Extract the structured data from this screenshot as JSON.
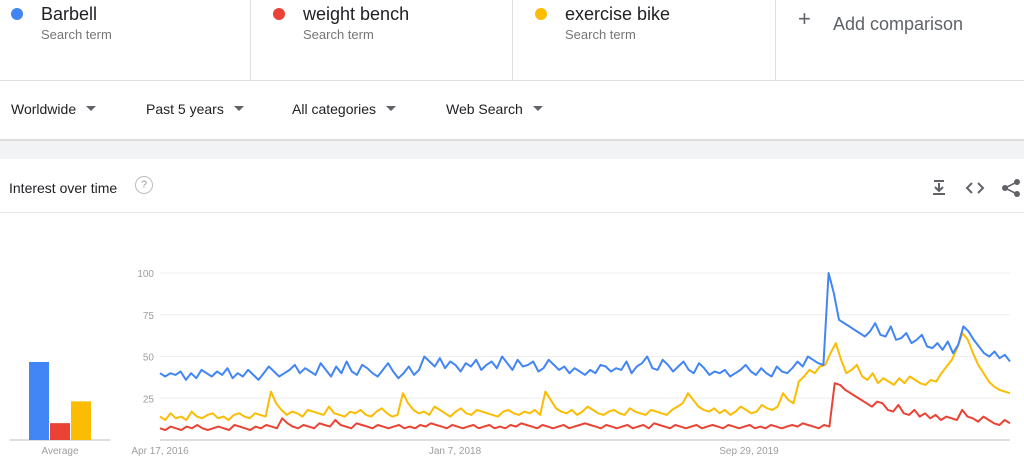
{
  "terms": [
    {
      "name": "Barbell",
      "sub": "Search term",
      "color": "#4285f4"
    },
    {
      "name": "weight bench",
      "sub": "Search term",
      "color": "#ea4335"
    },
    {
      "name": "exercise bike",
      "sub": "Search term",
      "color": "#fbbc04"
    }
  ],
  "add_comparison": {
    "icon": "+",
    "label": "Add comparison"
  },
  "filters": {
    "region": "Worldwide",
    "time": "Past 5 years",
    "category": "All categories",
    "property": "Web Search"
  },
  "card": {
    "title": "Interest over time",
    "help_icon": "?",
    "actions": [
      "download-icon",
      "embed-icon",
      "share-icon"
    ]
  },
  "chart_data": {
    "type": "line",
    "x_labels": [
      "Apr 17, 2016",
      "Jan 7, 2018",
      "Sep 29, 2019"
    ],
    "y_ticks": [
      25,
      50,
      75,
      100
    ],
    "ylim": [
      0,
      100
    ],
    "series": [
      {
        "name": "Barbell",
        "color": "#4285f4",
        "values": [
          40,
          38,
          40,
          39,
          41,
          36,
          40,
          37,
          42,
          40,
          38,
          41,
          39,
          43,
          37,
          40,
          38,
          42,
          39,
          36,
          40,
          44,
          41,
          38,
          40,
          42,
          45,
          40,
          43,
          41,
          39,
          46,
          42,
          38,
          44,
          40,
          47,
          41,
          39,
          45,
          43,
          40,
          38,
          42,
          46,
          41,
          37,
          40,
          44,
          39,
          42,
          50,
          47,
          44,
          49,
          43,
          47,
          45,
          41,
          46,
          44,
          48,
          42,
          45,
          47,
          43,
          50,
          46,
          42,
          48,
          44,
          45,
          47,
          41,
          43,
          48,
          45,
          42,
          44,
          40,
          43,
          41,
          39,
          42,
          40,
          45,
          44,
          41,
          43,
          42,
          47,
          40,
          44,
          46,
          50,
          43,
          42,
          48,
          45,
          41,
          44,
          47,
          42,
          40,
          46,
          43,
          39,
          41,
          40,
          42,
          38,
          40,
          42,
          45,
          41,
          39,
          43,
          40,
          38,
          44,
          41,
          40,
          43,
          47,
          44,
          50,
          48,
          46,
          45,
          100,
          88,
          72,
          70,
          68,
          66,
          64,
          62,
          65,
          70,
          63,
          62,
          68,
          60,
          61,
          64,
          58,
          60,
          63,
          56,
          55,
          58,
          54,
          59,
          52,
          57,
          68,
          65,
          60,
          56,
          52,
          50,
          53,
          49,
          51,
          47
        ]
      },
      {
        "name": "weight bench",
        "color": "#ea4335",
        "values": [
          7,
          6,
          8,
          7,
          6,
          8,
          7,
          9,
          7,
          6,
          7,
          8,
          7,
          6,
          9,
          8,
          7,
          6,
          8,
          7,
          9,
          8,
          7,
          13,
          10,
          8,
          7,
          9,
          8,
          7,
          10,
          9,
          8,
          12,
          9,
          8,
          7,
          10,
          9,
          8,
          7,
          9,
          8,
          7,
          8,
          9,
          7,
          8,
          7,
          9,
          8,
          10,
          9,
          8,
          7,
          9,
          8,
          7,
          8,
          9,
          7,
          8,
          9,
          7,
          8,
          7,
          9,
          8,
          10,
          9,
          8,
          7,
          9,
          8,
          7,
          8,
          9,
          7,
          8,
          9,
          10,
          9,
          8,
          7,
          9,
          8,
          7,
          8,
          9,
          7,
          8,
          9,
          7,
          10,
          9,
          8,
          7,
          9,
          8,
          7,
          8,
          9,
          7,
          8,
          9,
          8,
          7,
          9,
          8,
          7,
          8,
          9,
          7,
          8,
          7,
          9,
          8,
          7,
          8,
          9,
          8,
          10,
          9,
          8,
          7,
          9,
          8,
          34,
          33,
          30,
          28,
          26,
          24,
          22,
          20,
          23,
          22,
          18,
          17,
          21,
          16,
          15,
          18,
          14,
          16,
          13,
          15,
          12,
          14,
          13,
          12,
          18,
          14,
          13,
          11,
          14,
          12,
          10,
          9,
          12,
          10
        ]
      },
      {
        "name": "exercise bike",
        "color": "#fbbc04",
        "values": [
          14,
          12,
          16,
          13,
          14,
          12,
          17,
          14,
          13,
          15,
          16,
          13,
          14,
          12,
          15,
          16,
          14,
          13,
          16,
          15,
          14,
          29,
          22,
          18,
          15,
          17,
          16,
          14,
          18,
          17,
          16,
          15,
          20,
          16,
          15,
          14,
          17,
          16,
          18,
          15,
          14,
          17,
          19,
          16,
          14,
          15,
          28,
          22,
          18,
          16,
          17,
          15,
          20,
          18,
          16,
          14,
          17,
          19,
          16,
          15,
          18,
          17,
          16,
          15,
          14,
          17,
          18,
          16,
          15,
          17,
          16,
          18,
          15,
          29,
          24,
          19,
          17,
          16,
          18,
          15,
          17,
          20,
          18,
          16,
          15,
          17,
          18,
          16,
          15,
          19,
          17,
          16,
          15,
          18,
          17,
          16,
          15,
          18,
          20,
          22,
          28,
          24,
          20,
          18,
          17,
          19,
          16,
          18,
          15,
          17,
          20,
          18,
          16,
          17,
          21,
          19,
          18,
          20,
          28,
          24,
          22,
          35,
          38,
          42,
          40,
          44,
          45,
          52,
          58,
          48,
          40,
          42,
          45,
          38,
          36,
          40,
          34,
          37,
          35,
          33,
          37,
          34,
          38,
          36,
          34,
          33,
          36,
          35,
          40,
          44,
          48,
          55,
          64,
          60,
          52,
          45,
          40,
          35,
          32,
          30,
          29,
          28
        ]
      }
    ]
  }
}
